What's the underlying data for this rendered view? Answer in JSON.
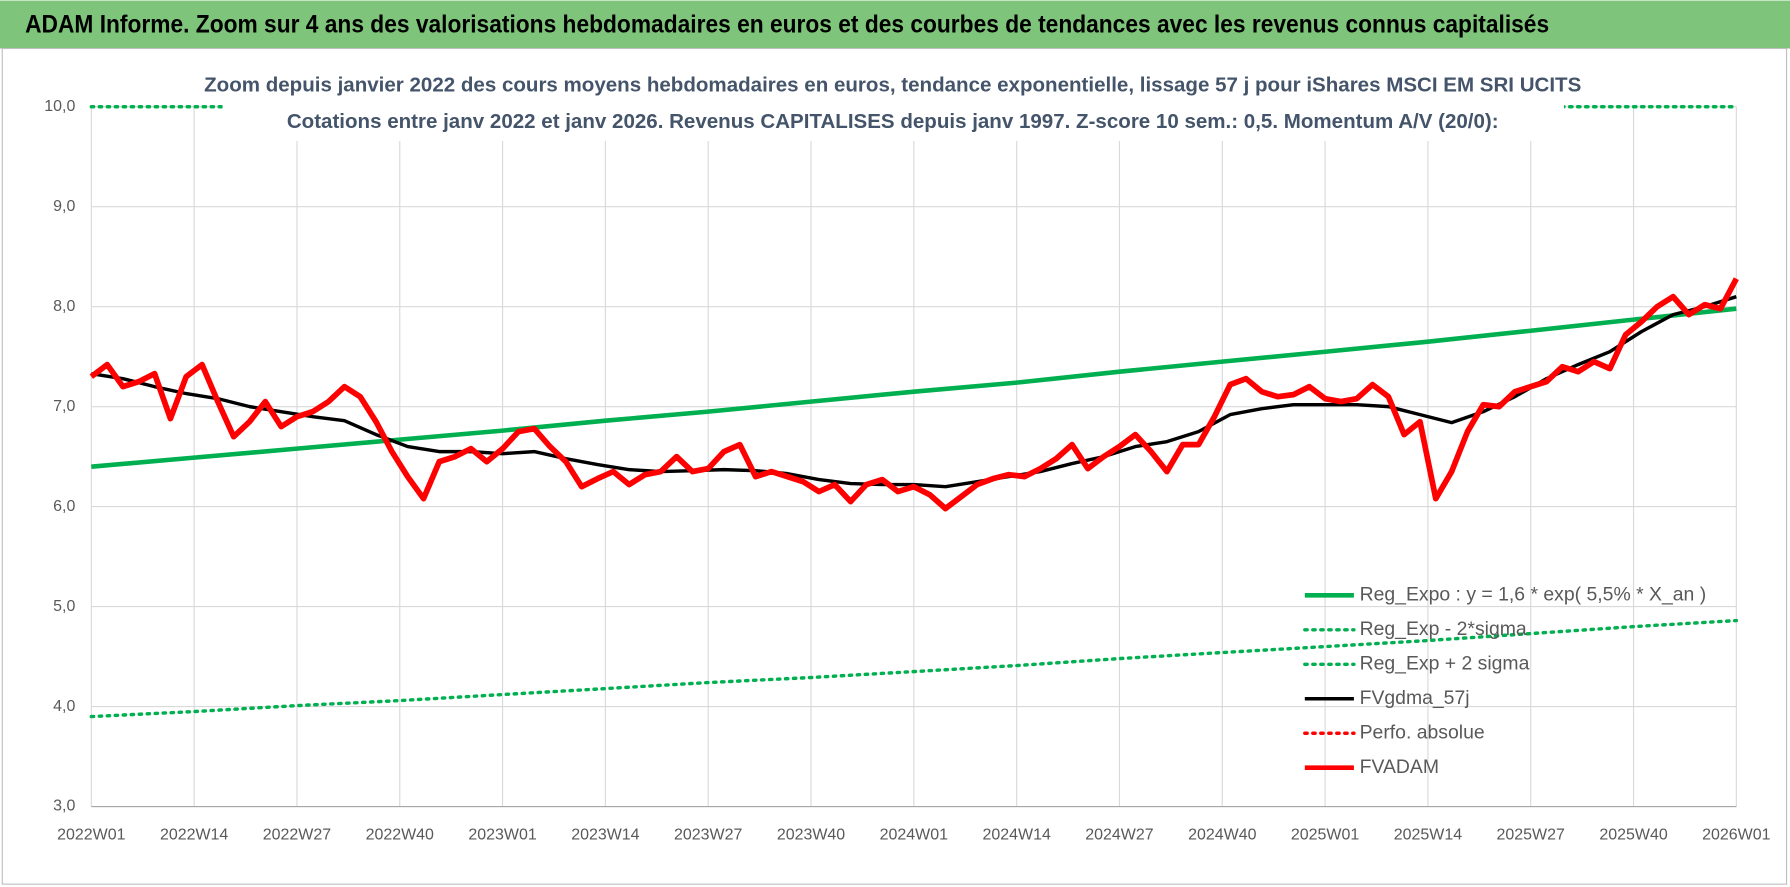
{
  "header": {
    "title": "ADAM Informe. Zoom sur 4 ans des valorisations hebdomadaires en euros et des courbes de tendances avec les revenus connus capitalisés"
  },
  "chart_data": {
    "type": "line",
    "title": [
      "Zoom depuis janvier 2022 des cours moyens hebdomadaires en euros, tendance exponentielle, lissage 57 j pour iShares MSCI EM SRI UCITS",
      "Cotations entre janv 2022 et janv 2026. Revenus CAPITALISES depuis janv 1997. Z-score 10 sem.: 0,5. Momentum A/V (20/0):"
    ],
    "xlim": [
      0,
      208
    ],
    "xticks": [
      {
        "value": 0,
        "label": "2022W01"
      },
      {
        "value": 13,
        "label": "2022W14"
      },
      {
        "value": 26,
        "label": "2022W27"
      },
      {
        "value": 39,
        "label": "2022W40"
      },
      {
        "value": 52,
        "label": "2023W01"
      },
      {
        "value": 65,
        "label": "2023W14"
      },
      {
        "value": 78,
        "label": "2023W27"
      },
      {
        "value": 91,
        "label": "2023W40"
      },
      {
        "value": 104,
        "label": "2024W01"
      },
      {
        "value": 117,
        "label": "2024W14"
      },
      {
        "value": 130,
        "label": "2024W27"
      },
      {
        "value": 143,
        "label": "2024W40"
      },
      {
        "value": 156,
        "label": "2025W01"
      },
      {
        "value": 169,
        "label": "2025W14"
      },
      {
        "value": 182,
        "label": "2025W27"
      },
      {
        "value": 195,
        "label": "2025W40"
      },
      {
        "value": 208,
        "label": "2026W01"
      }
    ],
    "ylim": [
      3,
      10
    ],
    "yticks": [
      {
        "value": 3,
        "label": "3,0"
      },
      {
        "value": 4,
        "label": "4,0"
      },
      {
        "value": 5,
        "label": "5,0"
      },
      {
        "value": 6,
        "label": "6,0"
      },
      {
        "value": 7,
        "label": "7,0"
      },
      {
        "value": 8,
        "label": "8,0"
      },
      {
        "value": 9,
        "label": "9,0"
      },
      {
        "value": 10,
        "label": "10,0"
      }
    ],
    "grid": true,
    "legend": "bottom-right",
    "series": [
      {
        "name": "Reg_Expo : y = 1,6 * exp( 5,5% *  X_an )",
        "color": "#00b050",
        "style": "solid",
        "width": 4,
        "x": [
          0,
          13,
          26,
          39,
          52,
          65,
          78,
          91,
          104,
          117,
          130,
          143,
          156,
          169,
          182,
          195,
          208
        ],
        "values": [
          6.4,
          6.49,
          6.58,
          6.67,
          6.76,
          6.86,
          6.95,
          7.05,
          7.15,
          7.24,
          7.35,
          7.45,
          7.55,
          7.65,
          7.76,
          7.87,
          7.98
        ]
      },
      {
        "name": "Reg_Exp - 2*sigma",
        "color": "#00b050",
        "style": "dotted",
        "width": 3,
        "x": [
          0,
          13,
          26,
          39,
          52,
          65,
          78,
          91,
          104,
          117,
          130,
          143,
          156,
          169,
          182,
          195,
          208
        ],
        "values": [
          3.9,
          3.95,
          4.01,
          4.06,
          4.12,
          4.18,
          4.24,
          4.29,
          4.35,
          4.41,
          4.48,
          4.54,
          4.6,
          4.66,
          4.73,
          4.8,
          4.86
        ]
      },
      {
        "name": "Reg_Exp + 2 sigma",
        "color": "#00b050",
        "style": "dotted",
        "width": 3,
        "x": [
          0,
          208
        ],
        "values": [
          10,
          10
        ]
      },
      {
        "name": "FVgdma_57j",
        "color": "#000000",
        "style": "solid",
        "width": 3,
        "x": [
          0,
          4,
          8,
          12,
          16,
          20,
          24,
          28,
          32,
          36,
          40,
          44,
          48,
          52,
          56,
          60,
          64,
          68,
          72,
          76,
          80,
          84,
          88,
          92,
          96,
          100,
          104,
          108,
          112,
          116,
          120,
          124,
          128,
          132,
          136,
          140,
          144,
          148,
          152,
          156,
          160,
          164,
          168,
          172,
          176,
          180,
          184,
          188,
          192,
          196,
          200,
          204,
          208
        ],
        "values": [
          7.33,
          7.28,
          7.2,
          7.13,
          7.08,
          7.0,
          6.95,
          6.9,
          6.86,
          6.72,
          6.6,
          6.55,
          6.55,
          6.53,
          6.55,
          6.48,
          6.42,
          6.37,
          6.35,
          6.36,
          6.37,
          6.36,
          6.33,
          6.27,
          6.23,
          6.22,
          6.22,
          6.2,
          6.25,
          6.3,
          6.35,
          6.43,
          6.5,
          6.6,
          6.65,
          6.75,
          6.92,
          6.98,
          7.02,
          7.02,
          7.02,
          7.0,
          6.92,
          6.84,
          6.95,
          7.1,
          7.28,
          7.42,
          7.55,
          7.75,
          7.92,
          8.0,
          8.1
        ]
      },
      {
        "name": "Perfo. absolue",
        "color": "#ff0000",
        "style": "dotted",
        "width": 3,
        "x": [],
        "values": []
      },
      {
        "name": "FVADAM",
        "color": "#ff0000",
        "style": "solid",
        "width": 5,
        "x": [
          0,
          2,
          4,
          6,
          8,
          10,
          12,
          14,
          16,
          18,
          20,
          22,
          24,
          26,
          28,
          30,
          32,
          34,
          36,
          38,
          40,
          42,
          44,
          46,
          48,
          50,
          52,
          54,
          56,
          58,
          60,
          62,
          64,
          66,
          68,
          70,
          72,
          74,
          76,
          78,
          80,
          82,
          84,
          86,
          88,
          90,
          92,
          94,
          96,
          98,
          100,
          102,
          104,
          106,
          108,
          110,
          112,
          114,
          116,
          118,
          120,
          122,
          124,
          126,
          128,
          130,
          132,
          134,
          136,
          138,
          140,
          142,
          144,
          146,
          148,
          150,
          152,
          154,
          156,
          158,
          160,
          162,
          164,
          166,
          168,
          170,
          172,
          174,
          176,
          178,
          180,
          182,
          184,
          186,
          188,
          190,
          192,
          194,
          196,
          198,
          200,
          202,
          204,
          206,
          208
        ],
        "values": [
          7.3,
          7.42,
          7.2,
          7.25,
          7.33,
          6.88,
          7.3,
          7.42,
          7.05,
          6.7,
          6.85,
          7.05,
          6.8,
          6.9,
          6.95,
          7.05,
          7.2,
          7.1,
          6.85,
          6.55,
          6.3,
          6.08,
          6.45,
          6.5,
          6.58,
          6.45,
          6.58,
          6.75,
          6.78,
          6.6,
          6.45,
          6.2,
          6.28,
          6.35,
          6.22,
          6.32,
          6.35,
          6.5,
          6.35,
          6.38,
          6.55,
          6.62,
          6.3,
          6.35,
          6.3,
          6.25,
          6.15,
          6.22,
          6.05,
          6.22,
          6.27,
          6.15,
          6.2,
          6.12,
          5.98,
          6.1,
          6.22,
          6.28,
          6.32,
          6.3,
          6.38,
          6.48,
          6.62,
          6.38,
          6.5,
          6.6,
          6.72,
          6.55,
          6.35,
          6.62,
          6.62,
          6.9,
          7.22,
          7.28,
          7.15,
          7.1,
          7.12,
          7.2,
          7.08,
          7.05,
          7.08,
          7.22,
          7.1,
          6.72,
          6.85,
          6.08,
          6.35,
          6.75,
          7.02,
          7.0,
          7.15,
          7.2,
          7.25,
          7.4,
          7.35,
          7.45,
          7.38,
          7.72,
          7.85,
          8.0,
          8.1,
          7.92,
          8.02,
          7.98,
          8.28
        ]
      }
    ]
  }
}
